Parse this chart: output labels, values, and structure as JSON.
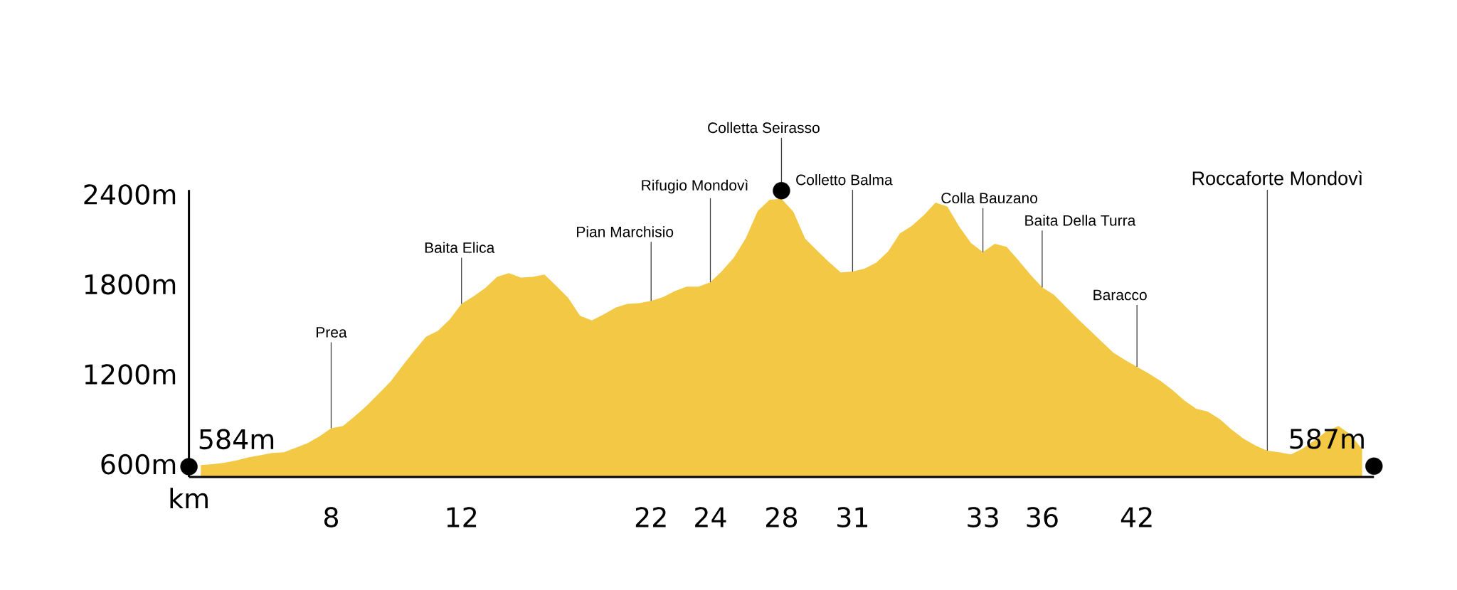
{
  "chart_data": {
    "type": "area",
    "xlabel": "km",
    "ylim": [
      515,
      2430
    ],
    "categories": [
      null,
      null,
      null,
      null,
      null,
      null,
      null,
      null,
      null,
      null,
      null,
      null,
      "8",
      null,
      null,
      null,
      null,
      null,
      null,
      null,
      null,
      null,
      null,
      "12",
      null,
      null,
      null,
      null,
      null,
      null,
      null,
      null,
      null,
      null,
      null,
      null,
      null,
      null,
      null,
      "22",
      null,
      null,
      null,
      null,
      "24",
      null,
      null,
      null,
      null,
      null,
      "28",
      null,
      null,
      null,
      null,
      null,
      "31",
      null,
      null,
      null,
      null,
      null,
      null,
      null,
      null,
      null,
      null,
      "33",
      null,
      null,
      null,
      null,
      "36",
      null,
      null,
      null,
      null,
      null,
      null,
      null,
      "42",
      null,
      null,
      null,
      null,
      null,
      null,
      null,
      null,
      null,
      null,
      null,
      null,
      null,
      null,
      null,
      null,
      null,
      null,
      null,
      null
    ],
    "yticks": [
      {
        "value": 600,
        "label": "600m"
      },
      {
        "value": 1200,
        "label": "1200m"
      },
      {
        "value": 1800,
        "label": "1800m"
      },
      {
        "value": 2400,
        "label": "2400m"
      }
    ],
    "series": [
      {
        "type": "scatter",
        "color": "#000000",
        "marker": "circle",
        "values": [
          584,
          null,
          null,
          null,
          null,
          null,
          null,
          null,
          null,
          null,
          null,
          null,
          null,
          null,
          null,
          null,
          null,
          null,
          null,
          null,
          null,
          null,
          null,
          null,
          null,
          null,
          null,
          null,
          null,
          null,
          null,
          null,
          null,
          null,
          null,
          null,
          null,
          null,
          null,
          null,
          null,
          null,
          null,
          null,
          null,
          null,
          null,
          null,
          null,
          null,
          2425,
          null,
          null,
          null,
          null,
          null,
          null,
          null,
          null,
          null,
          null,
          null,
          null,
          null,
          null,
          null,
          null,
          null,
          null,
          null,
          null,
          null,
          null,
          null,
          null,
          null,
          null,
          null,
          null,
          null,
          null,
          null,
          null,
          null,
          null,
          null,
          null,
          null,
          null,
          null,
          null,
          null,
          null,
          null,
          null,
          null,
          null,
          null,
          null,
          null,
          587
        ],
        "value_labels": [
          "584m",
          null,
          null,
          null,
          null,
          null,
          null,
          null,
          null,
          null,
          null,
          null,
          null,
          null,
          null,
          null,
          null,
          null,
          null,
          null,
          null,
          null,
          null,
          null,
          null,
          null,
          null,
          null,
          null,
          null,
          null,
          null,
          null,
          null,
          null,
          null,
          null,
          null,
          null,
          null,
          null,
          null,
          null,
          null,
          null,
          null,
          null,
          null,
          null,
          null,
          null,
          null,
          null,
          null,
          null,
          null,
          null,
          null,
          null,
          null,
          null,
          null,
          null,
          null,
          null,
          null,
          null,
          null,
          null,
          null,
          null,
          null,
          null,
          null,
          null,
          null,
          null,
          null,
          null,
          null,
          null,
          null,
          null,
          null,
          null,
          null,
          null,
          null,
          null,
          null,
          null,
          null,
          null,
          null,
          null,
          null,
          null,
          null,
          null,
          null,
          "587m"
        ]
      },
      {
        "color": "#f3c845",
        "values": [
          null,
          595,
          600,
          610,
          625,
          645,
          660,
          675,
          680,
          710,
          740,
          785,
          840,
          855,
          920,
          990,
          1070,
          1150,
          1255,
          1355,
          1450,
          1490,
          1565,
          1670,
          1720,
          1775,
          1850,
          1875,
          1845,
          1850,
          1865,
          1790,
          1710,
          1590,
          1560,
          1600,
          1645,
          1670,
          1675,
          1690,
          1715,
          1755,
          1785,
          1785,
          1815,
          1890,
          1980,
          2110,
          2290,
          2365,
          2370,
          2285,
          2105,
          2025,
          1950,
          1880,
          1885,
          1905,
          1945,
          2020,
          2140,
          2190,
          2260,
          2345,
          2320,
          2185,
          2075,
          2015,
          2070,
          2050,
          1960,
          1865,
          1780,
          1730,
          1650,
          1570,
          1495,
          1420,
          1345,
          1295,
          1250,
          1205,
          1155,
          1095,
          1025,
          970,
          950,
          900,
          830,
          770,
          725,
          690,
          680,
          665,
          705,
          760,
          820,
          855,
          800,
          700,
          null
        ]
      }
    ],
    "annotations": [
      {
        "text": "Prea",
        "x": "8",
        "y": 840
      },
      {
        "text": "Baita Elica",
        "x": "12",
        "y": 1670
      },
      {
        "text": "Pian Marchisio",
        "x": "22",
        "y": 1690
      },
      {
        "text": "Rifugio Mondovì",
        "x": "24",
        "y": 1815
      },
      {
        "text": "Colletta Seirasso",
        "x": "28",
        "y": 2370
      },
      {
        "text": "Colletto Balma",
        "x": "31",
        "y": 1885
      },
      {
        "text": "Colla Bauzano",
        "x": "33",
        "y": 2015
      },
      {
        "text": "Baita Della Turra",
        "x": "36",
        "y": 1780
      },
      {
        "text": "Baracco",
        "x": "42",
        "y": 1250
      },
      "Roccaforte Mondovì"
    ]
  }
}
